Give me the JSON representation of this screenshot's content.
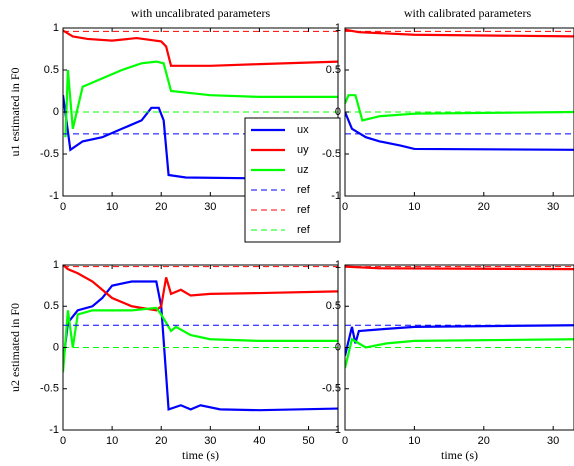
{
  "chart_data": [
    {
      "type": "line",
      "title": "with uncalibrated parameters",
      "ylabel": "u1 estimated in F0",
      "xlim": [
        0,
        56
      ],
      "xticks": [
        0,
        10,
        20,
        30,
        40,
        50
      ],
      "ylim": [
        -1,
        1
      ],
      "yticks": [
        -1,
        -0.5,
        0,
        0.5,
        1
      ],
      "legend": "center-right",
      "series": [
        {
          "name": "ux",
          "color": "#0000ff",
          "style": "solid",
          "x": [
            0,
            1.5,
            4,
            8,
            12,
            16,
            18,
            19.5,
            20.5,
            21.5,
            25,
            40,
            56
          ],
          "values": [
            0.2,
            -0.45,
            -0.35,
            -0.3,
            -0.2,
            -0.1,
            0.05,
            0.05,
            -0.1,
            -0.75,
            -0.78,
            -0.79,
            -0.79
          ]
        },
        {
          "name": "uy",
          "color": "#ff0000",
          "style": "solid",
          "x": [
            0,
            2,
            5,
            10,
            15,
            20,
            21,
            22,
            30,
            40,
            56
          ],
          "values": [
            0.97,
            0.9,
            0.87,
            0.85,
            0.88,
            0.84,
            0.78,
            0.55,
            0.55,
            0.57,
            0.6
          ]
        },
        {
          "name": "uz",
          "color": "#00ff00",
          "style": "solid",
          "x": [
            0.5,
            1,
            2,
            4,
            8,
            12,
            16,
            19,
            20.5,
            22,
            30,
            40,
            56
          ],
          "values": [
            -0.3,
            0.5,
            -0.2,
            0.3,
            0.4,
            0.5,
            0.58,
            0.6,
            0.58,
            0.25,
            0.2,
            0.18,
            0.18
          ]
        },
        {
          "name": "ref",
          "color": "#0000ff",
          "style": "dashed",
          "x": [
            0,
            56
          ],
          "values": [
            -0.26,
            -0.26
          ]
        },
        {
          "name": "ref",
          "color": "#ff0000",
          "style": "dashed",
          "x": [
            0,
            56
          ],
          "values": [
            0.96,
            0.96
          ]
        },
        {
          "name": "ref",
          "color": "#00ff00",
          "style": "dashed",
          "x": [
            0,
            56
          ],
          "values": [
            0,
            0
          ]
        }
      ]
    },
    {
      "type": "line",
      "title": "with calibrated parameters",
      "xlim": [
        0,
        33
      ],
      "xticks": [
        0,
        10,
        20,
        30
      ],
      "ylim": [
        -1,
        1
      ],
      "yticks": [
        -1,
        -0.5,
        0,
        0.5,
        1
      ],
      "series": [
        {
          "color": "#0000ff",
          "style": "solid",
          "x": [
            0,
            1,
            3,
            5,
            8,
            10,
            33
          ],
          "values": [
            0,
            -0.2,
            -0.3,
            -0.35,
            -0.4,
            -0.44,
            -0.45
          ]
        },
        {
          "color": "#ff0000",
          "style": "solid",
          "x": [
            0,
            2,
            10,
            33
          ],
          "values": [
            0.98,
            0.95,
            0.92,
            0.9
          ]
        },
        {
          "color": "#00ff00",
          "style": "solid",
          "x": [
            0,
            0.5,
            1.5,
            2.5,
            5,
            10,
            33
          ],
          "values": [
            0.1,
            0.2,
            0.2,
            -0.1,
            -0.05,
            -0.02,
            0
          ]
        },
        {
          "color": "#0000ff",
          "style": "dashed",
          "x": [
            0,
            33
          ],
          "values": [
            -0.26,
            -0.26
          ]
        },
        {
          "color": "#ff0000",
          "style": "dashed",
          "x": [
            0,
            33
          ],
          "values": [
            0.96,
            0.96
          ]
        },
        {
          "color": "#00ff00",
          "style": "dashed",
          "x": [
            0,
            33
          ],
          "values": [
            0,
            0
          ]
        }
      ]
    },
    {
      "type": "line",
      "ylabel": "u2 estimated in F0",
      "xlabel": "time (s)",
      "xlim": [
        0,
        56
      ],
      "xticks": [
        0,
        10,
        20,
        30,
        40,
        50
      ],
      "ylim": [
        -1,
        1
      ],
      "yticks": [
        -1,
        -0.5,
        0,
        0.5,
        1
      ],
      "series": [
        {
          "color": "#0000ff",
          "style": "solid",
          "x": [
            0,
            1,
            3,
            6,
            8,
            10,
            14,
            19,
            20,
            21.5,
            24,
            26,
            28,
            32,
            40,
            56
          ],
          "values": [
            -0.2,
            0.3,
            0.45,
            0.5,
            0.6,
            0.75,
            0.8,
            0.8,
            0.5,
            -0.75,
            -0.7,
            -0.75,
            -0.7,
            -0.75,
            -0.76,
            -0.74
          ]
        },
        {
          "color": "#ff0000",
          "style": "solid",
          "x": [
            0,
            1,
            3,
            6,
            10,
            14,
            19,
            20,
            21,
            22,
            24,
            26,
            30,
            40,
            56
          ],
          "values": [
            1,
            0.95,
            0.9,
            0.8,
            0.6,
            0.5,
            0.45,
            0.5,
            0.85,
            0.65,
            0.7,
            0.63,
            0.65,
            0.66,
            0.68
          ]
        },
        {
          "color": "#00ff00",
          "style": "solid",
          "x": [
            0,
            1,
            2,
            3,
            6,
            10,
            14,
            19,
            20,
            22,
            23,
            26,
            30,
            40,
            56
          ],
          "values": [
            -0.3,
            0.45,
            0,
            0.4,
            0.45,
            0.45,
            0.45,
            0.48,
            0.4,
            0.2,
            0.25,
            0.15,
            0.1,
            0.08,
            0.08
          ]
        },
        {
          "color": "#0000ff",
          "style": "dashed",
          "x": [
            0,
            56
          ],
          "values": [
            0.27,
            0.27
          ]
        },
        {
          "color": "#ff0000",
          "style": "dashed",
          "x": [
            0,
            56
          ],
          "values": [
            0.98,
            0.98
          ]
        },
        {
          "color": "#00ff00",
          "style": "dashed",
          "x": [
            0,
            56
          ],
          "values": [
            0,
            0
          ]
        }
      ]
    },
    {
      "type": "line",
      "xlabel": "time (s)",
      "xlim": [
        0,
        33
      ],
      "xticks": [
        0,
        10,
        20,
        30
      ],
      "ylim": [
        -1,
        1
      ],
      "yticks": [
        -1,
        -0.5,
        0,
        0.5,
        1
      ],
      "series": [
        {
          "color": "#0000ff",
          "style": "solid",
          "x": [
            0,
            1,
            1.5,
            2,
            5,
            10,
            33
          ],
          "values": [
            -0.1,
            0.25,
            0.05,
            0.2,
            0.22,
            0.25,
            0.27
          ]
        },
        {
          "color": "#ff0000",
          "style": "solid",
          "x": [
            0,
            5,
            33
          ],
          "values": [
            0.98,
            0.96,
            0.95
          ]
        },
        {
          "color": "#00ff00",
          "style": "solid",
          "x": [
            0,
            1,
            2,
            3,
            6,
            10,
            33
          ],
          "values": [
            -0.25,
            0.1,
            0.05,
            0,
            0.05,
            0.08,
            0.1
          ]
        },
        {
          "color": "#0000ff",
          "style": "dashed",
          "x": [
            0,
            33
          ],
          "values": [
            0.27,
            0.27
          ]
        },
        {
          "color": "#ff0000",
          "style": "dashed",
          "x": [
            0,
            33
          ],
          "values": [
            0.98,
            0.98
          ]
        },
        {
          "color": "#00ff00",
          "style": "dashed",
          "x": [
            0,
            33
          ],
          "values": [
            0,
            0
          ]
        }
      ]
    }
  ]
}
